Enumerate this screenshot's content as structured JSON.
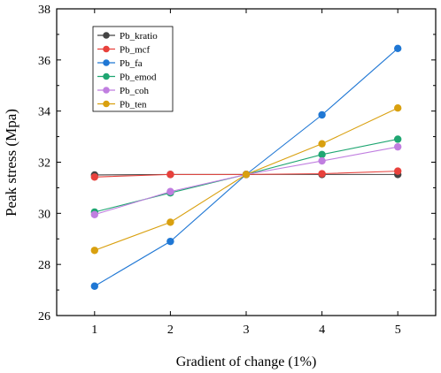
{
  "chart_data": {
    "type": "line",
    "title": "",
    "xlabel": "Gradient of change (1%)",
    "ylabel": "Peak stress (Mpa)",
    "x": [
      1,
      2,
      3,
      4,
      5
    ],
    "xlim": [
      0.5,
      5.5
    ],
    "ylim": [
      26,
      38
    ],
    "xticks": [
      "1",
      "2",
      "3",
      "4",
      "5"
    ],
    "yticks": [
      "26",
      "28",
      "30",
      "32",
      "34",
      "36",
      "38"
    ],
    "grid": false,
    "legend_position": "top-left",
    "series": [
      {
        "name": "Pb_kratio",
        "color": "#444444",
        "values": [
          31.5,
          31.52,
          31.52,
          31.52,
          31.52
        ]
      },
      {
        "name": "Pb_mcf",
        "color": "#e8413c",
        "values": [
          31.42,
          31.52,
          31.52,
          31.55,
          31.65
        ]
      },
      {
        "name": "Pb_fa",
        "color": "#1f77d4",
        "values": [
          27.15,
          28.9,
          31.52,
          33.85,
          36.45
        ]
      },
      {
        "name": "Pb_emod",
        "color": "#1fa672",
        "values": [
          30.05,
          30.8,
          31.52,
          32.3,
          32.9
        ]
      },
      {
        "name": "Pb_coh",
        "color": "#c07ee0",
        "values": [
          29.95,
          30.85,
          31.52,
          32.05,
          32.6
        ]
      },
      {
        "name": "Pb_ten",
        "color": "#d9a00f",
        "values": [
          28.55,
          29.65,
          31.52,
          32.72,
          34.12
        ]
      }
    ]
  }
}
